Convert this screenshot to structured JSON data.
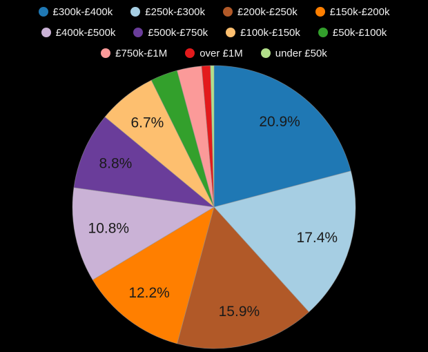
{
  "colors": {
    "background": "#000000",
    "legend_text": "#f0f0f0",
    "slice_label": "#1a1a1a",
    "slice_border": "#9a9a9a"
  },
  "chart_data": {
    "type": "pie",
    "direction": "clockwise",
    "start_angle_deg": 0,
    "legend_position": "top",
    "legend_rows": [
      4,
      4,
      3
    ],
    "series": [
      {
        "label": "£300k-£400k",
        "value": 20.9,
        "pct_label": "20.9%",
        "color": "#1f78b4"
      },
      {
        "label": "£250k-£300k",
        "value": 17.4,
        "pct_label": "17.4%",
        "color": "#a6cee3"
      },
      {
        "label": "£200k-£250k",
        "value": 15.9,
        "pct_label": "15.9%",
        "color": "#b15928"
      },
      {
        "label": "£150k-£200k",
        "value": 12.2,
        "pct_label": "12.2%",
        "color": "#ff7f00"
      },
      {
        "label": "£400k-£500k",
        "value": 10.8,
        "pct_label": "10.8%",
        "color": "#cab2d6"
      },
      {
        "label": "£500k-£750k",
        "value": 8.8,
        "pct_label": "8.8%",
        "color": "#6a3d9a"
      },
      {
        "label": "£100k-£150k",
        "value": 6.7,
        "pct_label": "6.7%",
        "color": "#fdbf6f"
      },
      {
        "label": "£50k-£100k",
        "value": 3.1,
        "pct_label": "",
        "color": "#33a02c"
      },
      {
        "label": "£750k-£1M",
        "value": 2.8,
        "pct_label": "",
        "color": "#fb9a99"
      },
      {
        "label": "over £1M",
        "value": 1.0,
        "pct_label": "",
        "color": "#e31a1c"
      },
      {
        "label": "under £50k",
        "value": 0.4,
        "pct_label": "",
        "color": "#b2df8a"
      }
    ]
  }
}
